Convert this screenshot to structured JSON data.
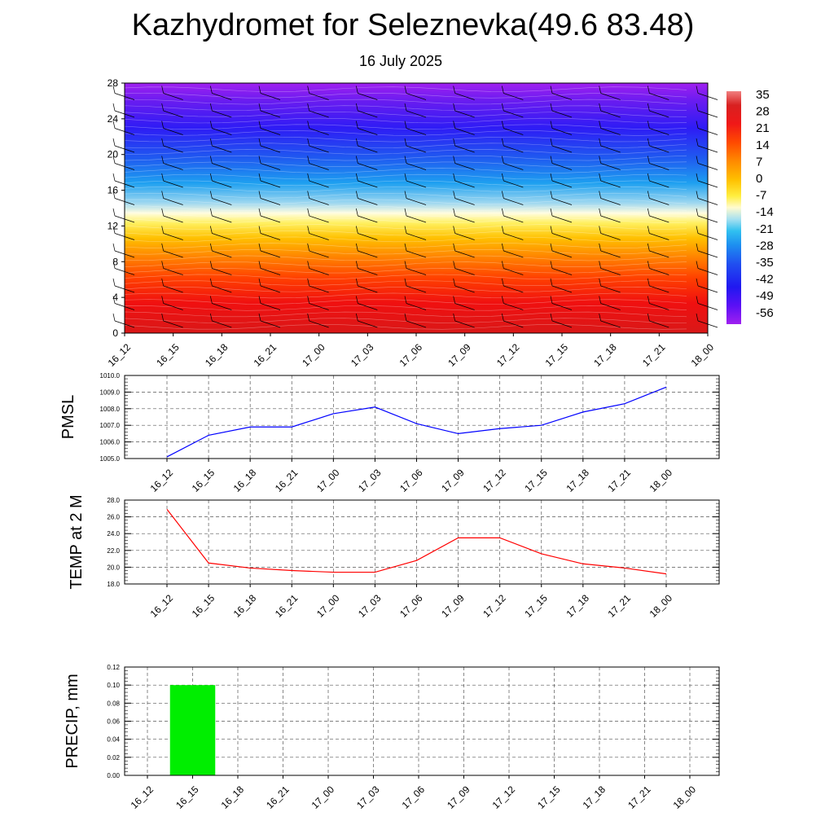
{
  "title": "Kazhydromet for Seleznevka(49.6 83.48)",
  "subtitle": "16 July 2025",
  "chart_data": [
    {
      "type": "heatmap",
      "name": "vertical temperature cross-section with wind barbs",
      "x_categories": [
        "16_12",
        "16_15",
        "16_18",
        "16_21",
        "17_00",
        "17_03",
        "17_06",
        "17_09",
        "17_12",
        "17_15",
        "17_18",
        "17_21",
        "18_00"
      ],
      "y_ticks": [
        "0",
        "4",
        "8",
        "12",
        "16",
        "20",
        "24",
        "28"
      ],
      "ylim": [
        0,
        28
      ],
      "colorbar_labels": [
        "35",
        "28",
        "21",
        "14",
        "7",
        "0",
        "-7",
        "-14",
        "-21",
        "-28",
        "-35",
        "-42",
        "-49",
        "-56"
      ],
      "colorbar_range": [
        -60,
        38
      ],
      "wind_barbs": true
    },
    {
      "type": "line",
      "ylabel": "PMSL",
      "x": [
        "16_12",
        "16_15",
        "16_18",
        "16_21",
        "17_00",
        "17_03",
        "17_06",
        "17_09",
        "17_12",
        "17_15",
        "17_18",
        "17_21",
        "18_00"
      ],
      "values": [
        1005.1,
        1006.4,
        1006.9,
        1006.9,
        1007.7,
        1008.1,
        1007.1,
        1006.5,
        1006.8,
        1007.0,
        1007.8,
        1008.3,
        1009.3
      ],
      "ylim": [
        1005.0,
        1010.0
      ],
      "y_ticks": [
        "1005.0",
        "1006.0",
        "1007.0",
        "1008.0",
        "1009.0",
        "1010.0"
      ],
      "color": "#0000ff",
      "grid": true
    },
    {
      "type": "line",
      "ylabel": "TEMP at 2 M",
      "x": [
        "16_12",
        "16_15",
        "16_18",
        "16_21",
        "17_00",
        "17_03",
        "17_06",
        "17_09",
        "17_12",
        "17_15",
        "17_18",
        "17_21",
        "18_00"
      ],
      "values": [
        26.9,
        20.5,
        19.9,
        19.6,
        19.4,
        19.4,
        20.8,
        23.5,
        23.5,
        21.6,
        20.4,
        19.9,
        19.2
      ],
      "ylim": [
        18.0,
        28.0
      ],
      "y_ticks": [
        "18.0",
        "20.0",
        "22.0",
        "24.0",
        "26.0",
        "28.0"
      ],
      "color": "#ff0000",
      "grid": true
    },
    {
      "type": "bar",
      "ylabel": "PRECIP, mm",
      "categories": [
        "16_12",
        "16_15",
        "16_18",
        "16_21",
        "17_00",
        "17_03",
        "17_06",
        "17_09",
        "17_12",
        "17_15",
        "17_18",
        "17_21",
        "18_00"
      ],
      "values": [
        0,
        0.1,
        0,
        0,
        0,
        0,
        0,
        0,
        0,
        0,
        0,
        0,
        0
      ],
      "ylim": [
        0,
        0.12
      ],
      "y_ticks": [
        "0.00",
        "0.02",
        "0.04",
        "0.06",
        "0.08",
        "0.10",
        "0.12"
      ],
      "color": "#00ee00",
      "grid": true
    }
  ]
}
